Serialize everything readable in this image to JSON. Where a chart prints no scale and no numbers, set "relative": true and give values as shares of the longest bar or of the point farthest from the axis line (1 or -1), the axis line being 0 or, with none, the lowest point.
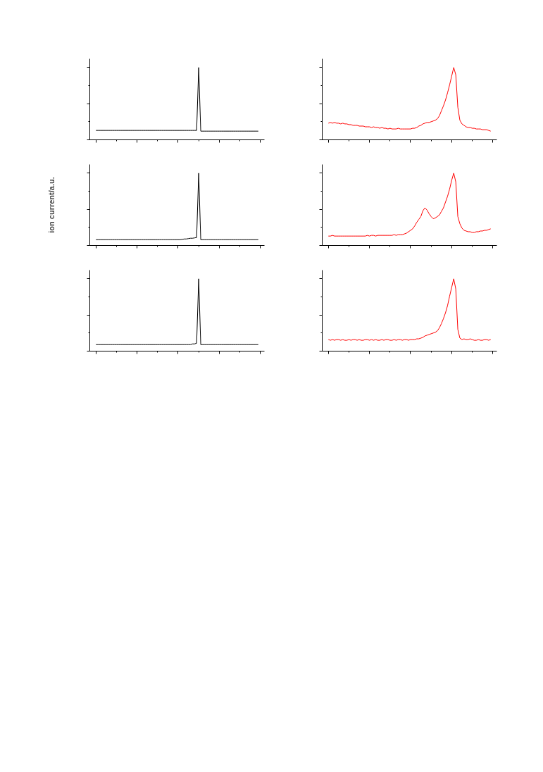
{
  "chart_data": [
    {
      "type": "line",
      "relative": true,
      "tick_labels": false,
      "grid": false,
      "categories": [
        null,
        null,
        null,
        null,
        null,
        null,
        null,
        null,
        null,
        null,
        null,
        null,
        null,
        null,
        null,
        null,
        null,
        null,
        null,
        null,
        null,
        null,
        null,
        null,
        null,
        null,
        null,
        null,
        null,
        null,
        null,
        null,
        null,
        null,
        null,
        null,
        null,
        null,
        null,
        null,
        null,
        null,
        null,
        null,
        null,
        null,
        null,
        null,
        null,
        null,
        null,
        null,
        null,
        null,
        null,
        null,
        null,
        null,
        null,
        null,
        null,
        null,
        null,
        null,
        null,
        null,
        null,
        null,
        null,
        null,
        null,
        null,
        null,
        null,
        null,
        null,
        null,
        null,
        null,
        null
      ],
      "series": [
        {
          "color": "#000000",
          "values": [
            0.13,
            0.13,
            0.13,
            0.13,
            0.13,
            0.13,
            0.13,
            0.13,
            0.13,
            0.13,
            0.13,
            0.13,
            0.13,
            0.13,
            0.13,
            0.13,
            0.13,
            0.13,
            0.13,
            0.13,
            0.13,
            0.13,
            0.13,
            0.13,
            0.13,
            0.13,
            0.13,
            0.13,
            0.13,
            0.13,
            0.13,
            0.13,
            0.13,
            0.13,
            0.13,
            0.13,
            0.13,
            0.13,
            0.13,
            0.13,
            0.13,
            0.13,
            0.13,
            0.13,
            0.13,
            0.13,
            0.13,
            0.13,
            0.13,
            0.13,
            1.0,
            0.12,
            0.12,
            0.12,
            0.12,
            0.12,
            0.12,
            0.12,
            0.12,
            0.12,
            0.12,
            0.12,
            0.12,
            0.12,
            0.12,
            0.12,
            0.12,
            0.12,
            0.12,
            0.12,
            0.12,
            0.12,
            0.12,
            0.12,
            0.12,
            0.12,
            0.12,
            0.12,
            0.12,
            0.12
          ]
        }
      ]
    },
    {
      "type": "line",
      "relative": true,
      "tick_labels": false,
      "grid": false,
      "categories": [
        null,
        null,
        null,
        null,
        null,
        null,
        null,
        null,
        null,
        null,
        null,
        null,
        null,
        null,
        null,
        null,
        null,
        null,
        null,
        null,
        null,
        null,
        null,
        null,
        null,
        null,
        null,
        null,
        null,
        null,
        null,
        null,
        null,
        null,
        null,
        null,
        null,
        null,
        null,
        null,
        null,
        null,
        null,
        null,
        null,
        null,
        null,
        null,
        null,
        null,
        null,
        null,
        null,
        null,
        null,
        null,
        null,
        null,
        null,
        null,
        null,
        null,
        null,
        null,
        null,
        null,
        null,
        null,
        null,
        null,
        null,
        null,
        null,
        null,
        null,
        null,
        null,
        null,
        null,
        null
      ],
      "series": [
        {
          "color": "#ff0000",
          "values": [
            0.23,
            0.24,
            0.23,
            0.24,
            0.23,
            0.23,
            0.22,
            0.23,
            0.22,
            0.22,
            0.21,
            0.21,
            0.2,
            0.2,
            0.2,
            0.19,
            0.19,
            0.19,
            0.18,
            0.18,
            0.18,
            0.17,
            0.18,
            0.17,
            0.17,
            0.16,
            0.17,
            0.16,
            0.16,
            0.15,
            0.16,
            0.15,
            0.15,
            0.15,
            0.16,
            0.15,
            0.15,
            0.15,
            0.15,
            0.15,
            0.15,
            0.16,
            0.16,
            0.17,
            0.19,
            0.2,
            0.22,
            0.23,
            0.24,
            0.24,
            0.25,
            0.26,
            0.27,
            0.29,
            0.33,
            0.4,
            0.47,
            0.55,
            0.65,
            0.76,
            0.88,
            1.0,
            0.9,
            0.45,
            0.27,
            0.22,
            0.2,
            0.18,
            0.17,
            0.17,
            0.16,
            0.16,
            0.15,
            0.15,
            0.15,
            0.14,
            0.14,
            0.14,
            0.13,
            0.12
          ]
        }
      ]
    },
    {
      "type": "line",
      "relative": true,
      "tick_labels": false,
      "grid": false,
      "ylabel": "ion current/a.u.",
      "categories": [
        null,
        null,
        null,
        null,
        null,
        null,
        null,
        null,
        null,
        null,
        null,
        null,
        null,
        null,
        null,
        null,
        null,
        null,
        null,
        null,
        null,
        null,
        null,
        null,
        null,
        null,
        null,
        null,
        null,
        null,
        null,
        null,
        null,
        null,
        null,
        null,
        null,
        null,
        null,
        null,
        null,
        null,
        null,
        null,
        null,
        null,
        null,
        null,
        null,
        null,
        null,
        null,
        null,
        null,
        null,
        null,
        null,
        null,
        null,
        null,
        null,
        null,
        null,
        null,
        null,
        null,
        null,
        null,
        null,
        null,
        null,
        null,
        null,
        null,
        null,
        null,
        null,
        null,
        null,
        null
      ],
      "series": [
        {
          "color": "#000000",
          "values": [
            0.08,
            0.08,
            0.08,
            0.08,
            0.08,
            0.08,
            0.08,
            0.08,
            0.08,
            0.08,
            0.08,
            0.08,
            0.08,
            0.08,
            0.08,
            0.08,
            0.08,
            0.08,
            0.08,
            0.08,
            0.08,
            0.08,
            0.08,
            0.08,
            0.08,
            0.08,
            0.08,
            0.08,
            0.08,
            0.08,
            0.08,
            0.08,
            0.08,
            0.08,
            0.08,
            0.08,
            0.08,
            0.08,
            0.08,
            0.08,
            0.08,
            0.08,
            0.085,
            0.09,
            0.09,
            0.095,
            0.1,
            0.1,
            0.105,
            0.11,
            1.0,
            0.08,
            0.08,
            0.08,
            0.08,
            0.08,
            0.08,
            0.08,
            0.08,
            0.08,
            0.08,
            0.08,
            0.08,
            0.08,
            0.08,
            0.08,
            0.08,
            0.08,
            0.08,
            0.08,
            0.08,
            0.08,
            0.08,
            0.08,
            0.08,
            0.08,
            0.08,
            0.08,
            0.08,
            0.08
          ]
        }
      ]
    },
    {
      "type": "line",
      "relative": true,
      "tick_labels": false,
      "grid": false,
      "categories": [
        null,
        null,
        null,
        null,
        null,
        null,
        null,
        null,
        null,
        null,
        null,
        null,
        null,
        null,
        null,
        null,
        null,
        null,
        null,
        null,
        null,
        null,
        null,
        null,
        null,
        null,
        null,
        null,
        null,
        null,
        null,
        null,
        null,
        null,
        null,
        null,
        null,
        null,
        null,
        null,
        null,
        null,
        null,
        null,
        null,
        null,
        null,
        null,
        null,
        null,
        null,
        null,
        null,
        null,
        null,
        null,
        null,
        null,
        null,
        null,
        null,
        null,
        null,
        null,
        null,
        null,
        null,
        null,
        null,
        null,
        null,
        null,
        null,
        null,
        null,
        null,
        null,
        null,
        null,
        null
      ],
      "series": [
        {
          "color": "#ff0000",
          "values": [
            0.13,
            0.13,
            0.14,
            0.13,
            0.13,
            0.13,
            0.13,
            0.13,
            0.13,
            0.13,
            0.13,
            0.13,
            0.13,
            0.13,
            0.13,
            0.13,
            0.13,
            0.13,
            0.13,
            0.14,
            0.13,
            0.14,
            0.14,
            0.13,
            0.14,
            0.14,
            0.14,
            0.14,
            0.14,
            0.14,
            0.14,
            0.14,
            0.15,
            0.14,
            0.15,
            0.15,
            0.15,
            0.16,
            0.17,
            0.19,
            0.21,
            0.23,
            0.27,
            0.32,
            0.36,
            0.4,
            0.48,
            0.52,
            0.49,
            0.44,
            0.4,
            0.37,
            0.38,
            0.4,
            0.42,
            0.47,
            0.52,
            0.6,
            0.68,
            0.78,
            0.9,
            1.0,
            0.88,
            0.4,
            0.3,
            0.24,
            0.21,
            0.2,
            0.19,
            0.19,
            0.18,
            0.18,
            0.19,
            0.19,
            0.2,
            0.2,
            0.21,
            0.21,
            0.22,
            0.23
          ]
        }
      ]
    },
    {
      "type": "line",
      "relative": true,
      "tick_labels": false,
      "grid": false,
      "categories": [
        null,
        null,
        null,
        null,
        null,
        null,
        null,
        null,
        null,
        null,
        null,
        null,
        null,
        null,
        null,
        null,
        null,
        null,
        null,
        null,
        null,
        null,
        null,
        null,
        null,
        null,
        null,
        null,
        null,
        null,
        null,
        null,
        null,
        null,
        null,
        null,
        null,
        null,
        null,
        null,
        null,
        null,
        null,
        null,
        null,
        null,
        null,
        null,
        null,
        null,
        null,
        null,
        null,
        null,
        null,
        null,
        null,
        null,
        null,
        null,
        null,
        null,
        null,
        null,
        null,
        null,
        null,
        null,
        null,
        null,
        null,
        null,
        null,
        null,
        null,
        null,
        null,
        null,
        null,
        null
      ],
      "series": [
        {
          "color": "#000000",
          "values": [
            0.09,
            0.09,
            0.09,
            0.09,
            0.09,
            0.09,
            0.09,
            0.09,
            0.09,
            0.09,
            0.09,
            0.09,
            0.09,
            0.09,
            0.09,
            0.09,
            0.09,
            0.09,
            0.09,
            0.09,
            0.09,
            0.09,
            0.09,
            0.09,
            0.09,
            0.09,
            0.09,
            0.09,
            0.09,
            0.09,
            0.09,
            0.09,
            0.09,
            0.09,
            0.09,
            0.09,
            0.09,
            0.09,
            0.09,
            0.09,
            0.09,
            0.09,
            0.09,
            0.09,
            0.09,
            0.09,
            0.09,
            0.1,
            0.1,
            0.11,
            1.0,
            0.09,
            0.09,
            0.09,
            0.09,
            0.09,
            0.09,
            0.09,
            0.09,
            0.09,
            0.09,
            0.09,
            0.09,
            0.09,
            0.09,
            0.09,
            0.09,
            0.09,
            0.09,
            0.09,
            0.09,
            0.09,
            0.09,
            0.09,
            0.09,
            0.09,
            0.09,
            0.09,
            0.09,
            0.09
          ]
        }
      ]
    },
    {
      "type": "line",
      "relative": true,
      "tick_labels": false,
      "grid": false,
      "categories": [
        null,
        null,
        null,
        null,
        null,
        null,
        null,
        null,
        null,
        null,
        null,
        null,
        null,
        null,
        null,
        null,
        null,
        null,
        null,
        null,
        null,
        null,
        null,
        null,
        null,
        null,
        null,
        null,
        null,
        null,
        null,
        null,
        null,
        null,
        null,
        null,
        null,
        null,
        null,
        null,
        null,
        null,
        null,
        null,
        null,
        null,
        null,
        null,
        null,
        null,
        null,
        null,
        null,
        null,
        null,
        null,
        null,
        null,
        null,
        null,
        null,
        null,
        null,
        null,
        null,
        null,
        null,
        null,
        null,
        null,
        null,
        null,
        null,
        null,
        null,
        null,
        null,
        null,
        null,
        null
      ],
      "series": [
        {
          "color": "#ff0000",
          "values": [
            0.16,
            0.15,
            0.16,
            0.15,
            0.16,
            0.16,
            0.15,
            0.16,
            0.15,
            0.15,
            0.16,
            0.15,
            0.16,
            0.16,
            0.15,
            0.16,
            0.15,
            0.15,
            0.16,
            0.16,
            0.15,
            0.16,
            0.15,
            0.16,
            0.15,
            0.15,
            0.16,
            0.15,
            0.16,
            0.16,
            0.15,
            0.15,
            0.16,
            0.15,
            0.16,
            0.16,
            0.15,
            0.16,
            0.16,
            0.15,
            0.16,
            0.16,
            0.16,
            0.17,
            0.17,
            0.18,
            0.19,
            0.21,
            0.22,
            0.23,
            0.24,
            0.25,
            0.26,
            0.28,
            0.32,
            0.38,
            0.45,
            0.53,
            0.63,
            0.76,
            0.88,
            1.0,
            0.86,
            0.3,
            0.18,
            0.16,
            0.17,
            0.16,
            0.16,
            0.17,
            0.16,
            0.15,
            0.15,
            0.16,
            0.15,
            0.15,
            0.16,
            0.16,
            0.15,
            0.16
          ]
        }
      ]
    }
  ]
}
